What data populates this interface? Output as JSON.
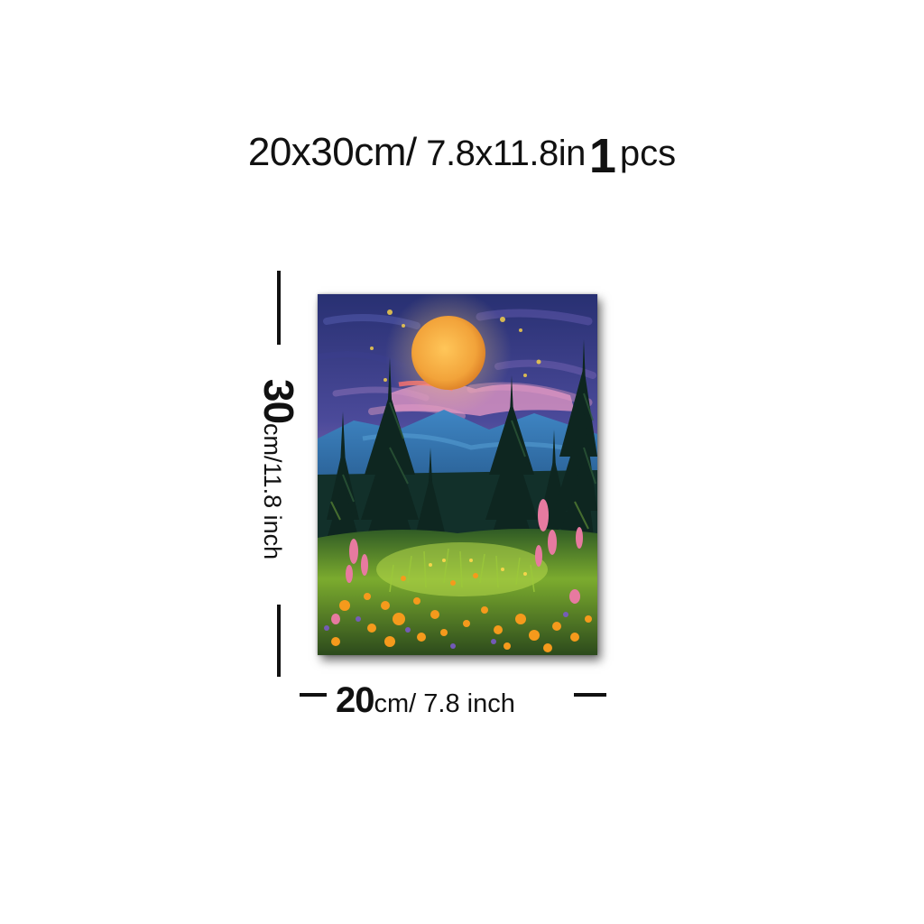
{
  "title": {
    "size_cm": "20x30cm/",
    "size_in": " 7.8x11.8in",
    "quantity": "1",
    "quantity_unit": "pcs"
  },
  "height_label": {
    "value": "30",
    "unit": "cm/11.8 inch"
  },
  "width_label": {
    "value": "20",
    "unit": "cm/",
    "unit_in": " 7.8 inch"
  },
  "colors": {
    "text": "#111111",
    "sky_dark": "#2b2f6b",
    "moon": "#f2a73a",
    "mountain": "#2f6fa8",
    "forest": "#0f2a22",
    "meadow": "#5d8f2a",
    "flower_orange": "#f59a1c",
    "flower_pink": "#e77aa0"
  },
  "painting": {
    "subject": "moon-over-forest-meadow-painting"
  }
}
